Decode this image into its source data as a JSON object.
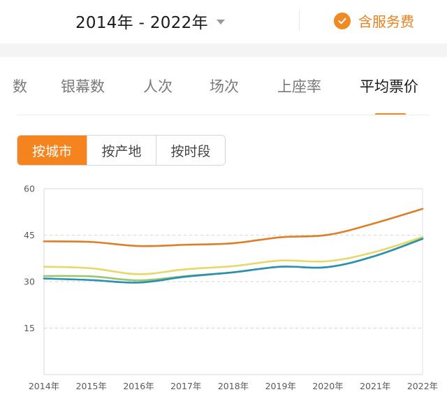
{
  "header": {
    "year_range": "2014年 - 2022年",
    "service_fee_label": "含服务费"
  },
  "tabs": [
    {
      "label": "数"
    },
    {
      "label": "银幕数"
    },
    {
      "label": "人次"
    },
    {
      "label": "场次"
    },
    {
      "label": "上座率"
    },
    {
      "label": "平均票价",
      "active": true
    }
  ],
  "segments": [
    {
      "label": "按城市",
      "active": true
    },
    {
      "label": "按产地"
    },
    {
      "label": "按时段"
    }
  ],
  "colors": {
    "accent": "#f08a24",
    "series_orange": "#e07d28",
    "series_yellow": "#e8d86a",
    "series_green": "#99c66b",
    "series_blue": "#2a8fb5"
  },
  "chart_data": {
    "type": "line",
    "title": "",
    "xlabel": "",
    "ylabel": "",
    "x": [
      "2014年",
      "2015年",
      "2016年",
      "2017年",
      "2018年",
      "2019年",
      "2020年",
      "2021年",
      "2022年"
    ],
    "ylim": [
      0,
      60
    ],
    "yticks": [
      15,
      30,
      45,
      60
    ],
    "grid": "horizontal dashed",
    "legend": "none",
    "series": [
      {
        "color": "#e07d28",
        "values": [
          43.0,
          42.8,
          41.5,
          41.9,
          42.4,
          44.3,
          45.1,
          48.9,
          53.5
        ]
      },
      {
        "color": "#e8d86a",
        "values": [
          34.8,
          34.3,
          32.4,
          34.0,
          35.0,
          36.8,
          36.6,
          39.6,
          44.4
        ]
      },
      {
        "color": "#99c66b",
        "values": [
          31.8,
          31.7,
          30.4,
          31.8,
          33.0,
          34.8,
          34.7,
          38.3,
          44.0
        ]
      },
      {
        "color": "#2a8fb5",
        "values": [
          31.0,
          30.5,
          29.7,
          31.6,
          33.0,
          34.8,
          34.7,
          38.3,
          43.8
        ]
      }
    ]
  }
}
